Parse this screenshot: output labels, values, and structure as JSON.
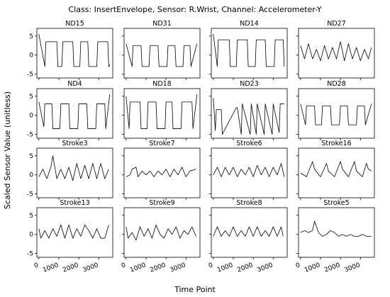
{
  "chart_data": {
    "type": "line",
    "title": "Class: InsertEnvelope, Sensor: R.Wrist, Channel: Accelerometer-Y",
    "xlabel": "Time Point",
    "ylabel": "Scaled Sensor Value (unitless)",
    "xlim": [
      -100,
      3700
    ],
    "ylim": [
      -6,
      7
    ],
    "xticks": [
      0,
      1000,
      2000,
      3000
    ],
    "xtick_labels": [
      "0",
      "1000",
      "2000",
      "3000"
    ],
    "yticks": [
      -5,
      0,
      5
    ],
    "ytick_labels": [
      "-5",
      "0",
      "5"
    ],
    "sharex": true,
    "sharey": true,
    "grid": false,
    "line_color": "#000000",
    "panels": [
      {
        "name": "ND15",
        "x": [
          0,
          300,
          350,
          900,
          950,
          1150,
          1200,
          1700,
          1750,
          2050,
          2100,
          2450,
          2500,
          2900,
          2950,
          3450,
          3500,
          3550
        ],
        "y": [
          5.5,
          -3.0,
          3.5,
          3.5,
          -3.0,
          -3.0,
          3.5,
          3.5,
          -3.0,
          -3.0,
          3.5,
          3.5,
          -3.0,
          -3.0,
          3.5,
          3.5,
          -3.0,
          -2.5
        ]
      },
      {
        "name": "ND31",
        "x": [
          0,
          300,
          350,
          750,
          800,
          1150,
          1200,
          1600,
          1650,
          2050,
          2100,
          2450,
          2500,
          2850,
          2900,
          3200,
          3250,
          3550
        ],
        "y": [
          3.0,
          -3.0,
          2.5,
          2.5,
          -3.0,
          -3.0,
          2.5,
          2.5,
          -3.0,
          -3.0,
          2.5,
          2.5,
          -3.0,
          -3.0,
          2.5,
          2.5,
          -3.0,
          3.0
        ]
      },
      {
        "name": "ND14",
        "x": [
          0,
          200,
          250,
          800,
          850,
          1150,
          1200,
          1700,
          1750,
          2100,
          2150,
          2600,
          2650,
          3050,
          3100,
          3500,
          3550
        ],
        "y": [
          5.5,
          -3.0,
          4.0,
          4.0,
          -3.0,
          -3.0,
          4.0,
          4.0,
          -3.0,
          -3.0,
          4.0,
          4.0,
          -3.0,
          -3.0,
          4.0,
          4.0,
          -3.0
        ]
      },
      {
        "name": "ND27",
        "x": [
          0,
          200,
          400,
          600,
          800,
          1000,
          1200,
          1400,
          1600,
          1800,
          2000,
          2200,
          2400,
          2600,
          2800,
          3000,
          3200,
          3400,
          3550
        ],
        "y": [
          2.5,
          -1.0,
          3.0,
          -1.0,
          1.5,
          -1.5,
          2.5,
          -1.0,
          2.0,
          -1.0,
          3.5,
          -1.5,
          3.0,
          -1.0,
          2.0,
          -1.5,
          1.5,
          -1.0,
          2.0
        ]
      },
      {
        "name": "ND4",
        "x": [
          0,
          250,
          300,
          650,
          700,
          1050,
          1100,
          1500,
          1550,
          1950,
          2000,
          2400,
          2450,
          2850,
          2900,
          3300,
          3350,
          3550
        ],
        "y": [
          3.5,
          -3.0,
          3.0,
          3.0,
          -3.5,
          -3.5,
          3.0,
          3.0,
          -3.5,
          -3.5,
          3.0,
          3.0,
          -3.5,
          -3.5,
          3.0,
          3.0,
          -3.5,
          5.5
        ]
      },
      {
        "name": "ND18",
        "x": [
          0,
          150,
          200,
          700,
          750,
          1050,
          1100,
          1500,
          1550,
          1950,
          2000,
          2300,
          2350,
          2750,
          2800,
          3300,
          3350,
          3550
        ],
        "y": [
          5.0,
          -3.5,
          3.5,
          3.5,
          -3.5,
          -3.5,
          3.5,
          3.5,
          -3.5,
          -3.5,
          3.5,
          3.5,
          -3.5,
          -3.5,
          3.5,
          3.5,
          -3.5,
          5.5
        ]
      },
      {
        "name": "ND23",
        "x": [
          0,
          100,
          150,
          400,
          450,
          1150,
          1200,
          1400,
          1450,
          1850,
          1900,
          2150,
          2200,
          2550,
          2600,
          2950,
          3000,
          3300,
          3350,
          3550
        ],
        "y": [
          4.5,
          -4.0,
          1.5,
          1.5,
          -5.0,
          2.0,
          2.0,
          -5.0,
          3.0,
          -5.0,
          3.0,
          -5.0,
          3.0,
          -5.0,
          3.0,
          -5.0,
          3.0,
          -4.5,
          3.0,
          3.0
        ]
      },
      {
        "name": "ND28",
        "x": [
          0,
          250,
          300,
          700,
          750,
          1050,
          1100,
          1500,
          1550,
          1950,
          2000,
          2350,
          2400,
          2800,
          2850,
          3200,
          3250,
          3550
        ],
        "y": [
          3.0,
          -2.5,
          2.5,
          2.5,
          -2.5,
          -2.5,
          2.5,
          2.5,
          -2.5,
          -2.5,
          2.5,
          2.5,
          -2.5,
          -2.5,
          2.5,
          2.5,
          -2.5,
          3.0
        ]
      },
      {
        "name": "Stroke3",
        "x": [
          0,
          200,
          400,
          600,
          700,
          900,
          1100,
          1300,
          1500,
          1700,
          1900,
          2100,
          2300,
          2500,
          2700,
          2900,
          3100,
          3300,
          3500
        ],
        "y": [
          -0.5,
          1.5,
          -1.0,
          2.0,
          5.0,
          -1.0,
          1.5,
          -1.0,
          2.0,
          -1.5,
          3.0,
          -1.0,
          2.5,
          -1.0,
          3.0,
          -1.0,
          3.0,
          -1.0,
          1.5
        ]
      },
      {
        "name": "Stroke7",
        "x": [
          0,
          200,
          300,
          500,
          600,
          800,
          1000,
          1200,
          1400,
          1600,
          1800,
          2000,
          2200,
          2400,
          2600,
          2800,
          3000,
          3200,
          3500
        ],
        "y": [
          -0.5,
          0.0,
          1.5,
          2.0,
          -0.5,
          1.0,
          0.0,
          1.0,
          -0.5,
          1.0,
          0.0,
          1.5,
          -0.5,
          1.5,
          0.0,
          2.0,
          -0.5,
          1.0,
          1.5
        ]
      },
      {
        "name": "Stroke6",
        "x": [
          0,
          200,
          400,
          600,
          800,
          1000,
          1200,
          1400,
          1600,
          1800,
          2000,
          2200,
          2400,
          2600,
          2800,
          3000,
          3200,
          3400,
          3550
        ],
        "y": [
          0.0,
          2.0,
          -0.5,
          2.0,
          0.0,
          2.0,
          -0.5,
          1.5,
          0.0,
          2.0,
          -0.5,
          2.5,
          0.0,
          2.0,
          -0.5,
          2.0,
          0.0,
          3.0,
          -0.5
        ]
      },
      {
        "name": "Stroke16",
        "x": [
          0,
          300,
          600,
          700,
          1000,
          1300,
          1400,
          1700,
          2000,
          2100,
          2400,
          2700,
          2800,
          3100,
          3300,
          3400,
          3550
        ],
        "y": [
          0.5,
          -0.5,
          3.5,
          1.5,
          -0.5,
          3.0,
          1.0,
          -0.5,
          3.5,
          1.5,
          -0.5,
          3.5,
          1.0,
          -0.5,
          3.0,
          1.5,
          1.0
        ]
      },
      {
        "name": "Stroke13",
        "x": [
          0,
          100,
          300,
          500,
          700,
          900,
          1100,
          1300,
          1500,
          1700,
          1900,
          2100,
          2300,
          2500,
          2700,
          2900,
          3100,
          3300,
          3500
        ],
        "y": [
          1.5,
          -1.0,
          1.0,
          -1.0,
          1.5,
          -0.5,
          2.5,
          -1.0,
          2.5,
          -1.0,
          1.5,
          -0.5,
          2.5,
          1.0,
          -1.0,
          1.5,
          -1.0,
          -1.0,
          2.5
        ]
      },
      {
        "name": "Stroke9",
        "x": [
          0,
          100,
          300,
          500,
          700,
          900,
          1100,
          1300,
          1500,
          1700,
          1900,
          2100,
          2300,
          2500,
          2700,
          2900,
          3100,
          3300,
          3500
        ],
        "y": [
          2.0,
          -1.0,
          0.5,
          -1.5,
          2.0,
          -0.5,
          1.5,
          -1.0,
          2.5,
          0.0,
          -1.0,
          1.5,
          0.0,
          2.0,
          -1.0,
          1.0,
          0.0,
          2.0,
          -0.5
        ]
      },
      {
        "name": "Stroke8",
        "x": [
          0,
          200,
          400,
          600,
          800,
          1000,
          1200,
          1400,
          1600,
          1800,
          2000,
          2200,
          2400,
          2600,
          2800,
          3000,
          3200,
          3400,
          3500
        ],
        "y": [
          -0.5,
          2.0,
          -0.5,
          1.0,
          -0.5,
          2.0,
          -0.5,
          1.0,
          -0.5,
          2.0,
          -0.5,
          2.0,
          -0.5,
          1.0,
          -0.5,
          2.0,
          -0.5,
          2.0,
          -0.5
        ]
      },
      {
        "name": "Stroke5",
        "x": [
          0,
          200,
          400,
          600,
          700,
          900,
          1100,
          1300,
          1500,
          1700,
          1900,
          2100,
          2300,
          2500,
          2700,
          2900,
          3100,
          3300,
          3550
        ],
        "y": [
          0.5,
          1.0,
          0.5,
          1.0,
          3.5,
          0.5,
          -0.5,
          0.0,
          1.0,
          0.5,
          -0.5,
          0.0,
          -0.5,
          0.0,
          -0.5,
          -0.5,
          0.0,
          -0.5,
          -0.5
        ]
      }
    ]
  }
}
